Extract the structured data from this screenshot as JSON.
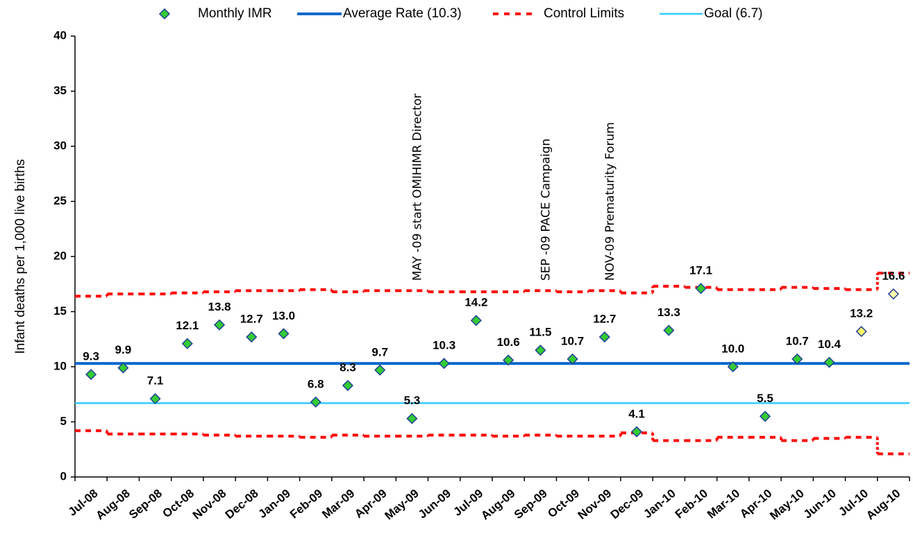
{
  "chart_data": {
    "type": "line",
    "y_label": "Infant deaths per 1,000 live births",
    "categories": [
      "Jul-08",
      "Aug-08",
      "Sep-08",
      "Oct-08",
      "Nov-08",
      "Dec-08",
      "Jan-09",
      "Feb-09",
      "Mar-09",
      "Apr-09",
      "May-09",
      "Jun-09",
      "Jul-09",
      "Aug-09",
      "Sep-09",
      "Oct-09",
      "Nov-09",
      "Dec-09",
      "Jan-10",
      "Feb-10",
      "Mar-10",
      "Apr-10",
      "May-10",
      "Jun-10",
      "Jul-10",
      "Aug-10"
    ],
    "series": [
      {
        "name": "Monthly IMR",
        "color": "#33cc33",
        "stroke": "#1f3d99",
        "values": [
          9.3,
          9.9,
          7.1,
          12.1,
          13.8,
          12.7,
          13.0,
          6.8,
          8.3,
          9.7,
          5.3,
          10.3,
          14.2,
          10.6,
          11.5,
          10.7,
          12.7,
          4.1,
          13.3,
          17.1,
          10.0,
          5.5,
          10.7,
          10.4,
          13.2,
          16.6
        ],
        "value_labels": [
          "9.3",
          "9.9",
          "7.1",
          "12.1",
          "13.8",
          "12.7",
          "13.0",
          "6.8",
          "8.3",
          "9.7",
          "5.3",
          "10.3",
          "14.2",
          "10.6",
          "11.5",
          "10.7",
          "12.7",
          "4.1",
          "13.3",
          "17.1",
          "10.0",
          "5.5",
          "10.7",
          "10.4",
          "13.2",
          "16.6"
        ],
        "colors": [
          "#33cc33",
          "#33cc33",
          "#33cc33",
          "#33cc33",
          "#33cc33",
          "#33cc33",
          "#33cc33",
          "#33cc33",
          "#33cc33",
          "#33cc33",
          "#33cc33",
          "#33cc33",
          "#33cc33",
          "#33cc33",
          "#33cc33",
          "#33cc33",
          "#33cc33",
          "#33cc33",
          "#33cc33",
          "#33cc33",
          "#33cc33",
          "#33cc33",
          "#33cc33",
          "#33cc33",
          "#ffff66",
          "#ffffaa"
        ]
      },
      {
        "name": "Average Rate (10.3)",
        "color": "#0066cc",
        "value": 10.3
      },
      {
        "name": "Control Limits",
        "color": "#ff0000",
        "upper": [
          16.4,
          16.6,
          16.6,
          16.7,
          16.8,
          16.9,
          16.9,
          17.0,
          16.8,
          16.9,
          16.9,
          16.8,
          16.8,
          16.8,
          16.9,
          16.8,
          16.9,
          16.7,
          17.3,
          17.2,
          17.0,
          17.0,
          17.2,
          17.1,
          17.0,
          18.5
        ],
        "lower": [
          4.2,
          3.9,
          3.9,
          3.9,
          3.8,
          3.7,
          3.7,
          3.6,
          3.8,
          3.7,
          3.7,
          3.8,
          3.8,
          3.7,
          3.8,
          3.7,
          3.7,
          4.0,
          3.3,
          3.3,
          3.6,
          3.6,
          3.3,
          3.5,
          3.6,
          2.1
        ]
      },
      {
        "name": "Goal (6.7)",
        "color": "#33ccff",
        "value": 6.7
      }
    ],
    "annotations": [
      "MAY -09 start OMIHIMR Director",
      "SEP -09 PACE Campaign",
      "NOV-09 Prematurity Forum"
    ],
    "ylim": [
      0,
      40
    ],
    "yticks": [
      0,
      5,
      10,
      15,
      20,
      25,
      30,
      35,
      40
    ]
  }
}
